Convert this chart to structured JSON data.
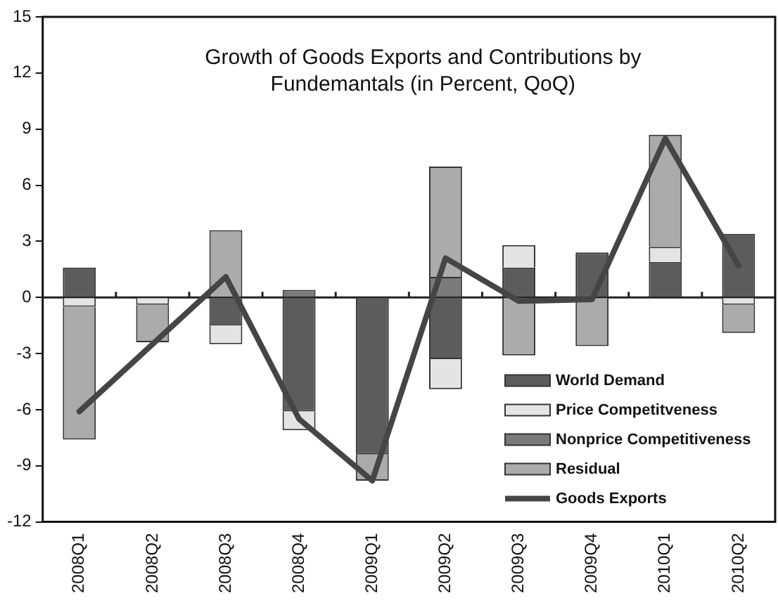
{
  "chart_data": {
    "type": "bar",
    "title": "Growth of Goods Exports and Contributions by\nFundemantals (in Percent, QoQ)",
    "categories": [
      "2008Q1",
      "2008Q2",
      "2008Q3",
      "2008Q4",
      "2009Q1",
      "2009Q2",
      "2009Q3",
      "2009Q4",
      "2010Q1",
      "2010Q2"
    ],
    "stacked": true,
    "series": [
      {
        "name": "World Demand",
        "color": "#5c5c5c",
        "values": [
          1.6,
          0,
          -1.5,
          -6.1,
          -8.4,
          -3.3,
          1.6,
          2.4,
          1.9,
          3.4
        ]
      },
      {
        "name": "Price Competitveness",
        "color": "#e4e4e4",
        "values": [
          -0.5,
          -0.4,
          -1.0,
          -1.0,
          0,
          -1.6,
          1.2,
          0,
          0.8,
          -0.4
        ]
      },
      {
        "name": "Nonprice Competitiveness",
        "color": "#7a7a7a",
        "values": [
          0,
          0,
          0,
          0.4,
          0,
          1.1,
          0,
          0,
          0,
          0
        ]
      },
      {
        "name": "Residual",
        "color": "#ababab",
        "values": [
          -7.1,
          -2.0,
          3.6,
          0,
          -1.4,
          5.9,
          -3.1,
          -2.6,
          6.0,
          -1.5
        ]
      },
      {
        "name": "Goods Exports",
        "type": "line",
        "color": "#454545",
        "values": [
          -6.1,
          -2.5,
          1.1,
          -6.5,
          -9.8,
          2.1,
          -0.2,
          -0.1,
          8.5,
          1.7
        ]
      }
    ],
    "ylim": [
      -12,
      15
    ],
    "yticks": [
      -12,
      -9,
      -6,
      -3,
      0,
      3,
      6,
      9,
      12,
      15
    ],
    "ref_lines": [
      {
        "axis": "y",
        "value": 0,
        "color": "#222222"
      }
    ],
    "grid": false,
    "legend": "bottom right",
    "marker": "none"
  }
}
